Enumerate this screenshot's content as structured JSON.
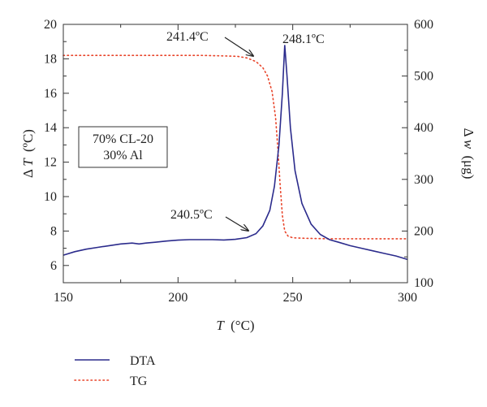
{
  "chart_data": {
    "type": "line",
    "x": {
      "label_var": "T",
      "label_unit": "(°C)",
      "lim": [
        150,
        300
      ],
      "ticks": [
        150,
        200,
        250,
        300
      ],
      "tick_labels": [
        "150",
        "200",
        "250",
        "300"
      ]
    },
    "y_left": {
      "label_prefix": "Δ",
      "label_var": "T",
      "label_unit": "(ºC)",
      "lim": [
        5,
        20
      ],
      "ticks": [
        6,
        8,
        10,
        12,
        14,
        16,
        18,
        20
      ],
      "tick_labels": [
        "6",
        "8",
        "10",
        "12",
        "14",
        "16",
        "18",
        "20"
      ]
    },
    "y_right": {
      "label_prefix": "Δ",
      "label_var": "w",
      "label_unit": "(μg)",
      "lim": [
        100,
        600
      ],
      "ticks": [
        100,
        200,
        300,
        400,
        500,
        600
      ],
      "tick_labels": [
        "100",
        "200",
        "300",
        "400",
        "500",
        "600"
      ]
    },
    "series": [
      {
        "name": "DTA",
        "axis": "left",
        "color": "#2b2b8c",
        "style": "solid",
        "points": [
          [
            150,
            6.6
          ],
          [
            155,
            6.8
          ],
          [
            160,
            6.95
          ],
          [
            165,
            7.05
          ],
          [
            170,
            7.15
          ],
          [
            175,
            7.25
          ],
          [
            180,
            7.3
          ],
          [
            183,
            7.25
          ],
          [
            186,
            7.3
          ],
          [
            190,
            7.35
          ],
          [
            195,
            7.42
          ],
          [
            200,
            7.47
          ],
          [
            205,
            7.5
          ],
          [
            210,
            7.5
          ],
          [
            215,
            7.5
          ],
          [
            220,
            7.48
          ],
          [
            225,
            7.52
          ],
          [
            230,
            7.62
          ],
          [
            234,
            7.85
          ],
          [
            237,
            8.3
          ],
          [
            240,
            9.2
          ],
          [
            242,
            10.6
          ],
          [
            244,
            13.0
          ],
          [
            245.5,
            16.0
          ],
          [
            246.5,
            18.8
          ],
          [
            247.5,
            17.0
          ],
          [
            249,
            14.0
          ],
          [
            251,
            11.5
          ],
          [
            254,
            9.6
          ],
          [
            258,
            8.4
          ],
          [
            262,
            7.8
          ],
          [
            266,
            7.5
          ],
          [
            270,
            7.35
          ],
          [
            275,
            7.15
          ],
          [
            280,
            7.0
          ],
          [
            285,
            6.85
          ],
          [
            290,
            6.7
          ],
          [
            295,
            6.55
          ],
          [
            300,
            6.35
          ]
        ]
      },
      {
        "name": "TG",
        "axis": "right",
        "color": "#e8442a",
        "style": "dotted",
        "points": [
          [
            150,
            540
          ],
          [
            170,
            540
          ],
          [
            190,
            540
          ],
          [
            210,
            540
          ],
          [
            220,
            539
          ],
          [
            226,
            538
          ],
          [
            230,
            535
          ],
          [
            234,
            528
          ],
          [
            237,
            516
          ],
          [
            239,
            500
          ],
          [
            241,
            470
          ],
          [
            242.5,
            420
          ],
          [
            243.5,
            360
          ],
          [
            244.5,
            290
          ],
          [
            245.5,
            230
          ],
          [
            246.5,
            200
          ],
          [
            248,
            190
          ],
          [
            250,
            187
          ],
          [
            255,
            186
          ],
          [
            265,
            185
          ],
          [
            280,
            185
          ],
          [
            300,
            185
          ]
        ]
      }
    ],
    "annotations": [
      {
        "text": "241.4ºC",
        "target": [
          234,
          535
        ]
      },
      {
        "text": "248.1ºC",
        "target": [
          246.5,
          18.8
        ]
      },
      {
        "text": "240.5ºC",
        "target": [
          234,
          7.85
        ]
      }
    ],
    "textbox": [
      "70% CL-20",
      "30% Al"
    ],
    "legend": {
      "position": "bottom-left",
      "entries": [
        "DTA",
        "TG"
      ]
    },
    "grid": false
  }
}
